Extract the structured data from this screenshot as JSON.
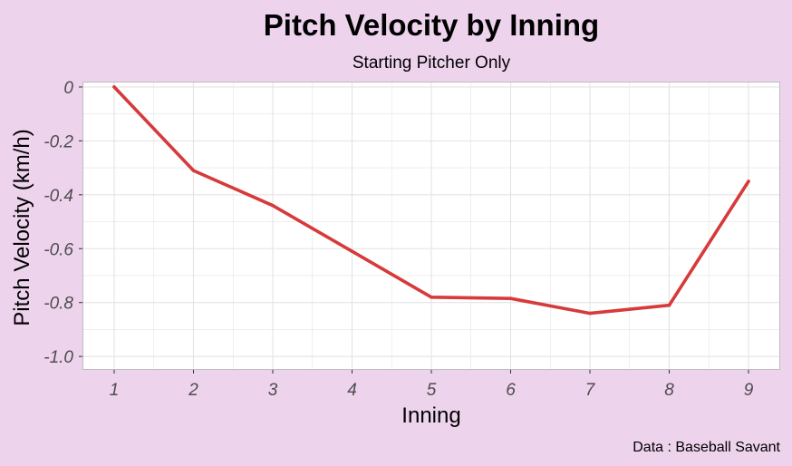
{
  "chart_data": {
    "type": "line",
    "title": "Pitch Velocity by Inning",
    "subtitle": "Starting Pitcher Only",
    "xlabel": "Inning",
    "ylabel": "Pitch Velocity (km/h)",
    "caption": "Data : Baseball Savant",
    "x": [
      1,
      2,
      3,
      4,
      5,
      6,
      7,
      8,
      9
    ],
    "x_tick_labels": [
      "1",
      "2",
      "3",
      "4",
      "5",
      "6",
      "7",
      "8",
      "9"
    ],
    "y_ticks": [
      0,
      -0.2,
      -0.4,
      -0.6,
      -0.8,
      -1.0
    ],
    "y_tick_labels": [
      "0",
      "-0.2",
      "-0.4",
      "-0.6",
      "-0.8",
      "-1.0"
    ],
    "xlim": [
      0.6,
      9.4
    ],
    "ylim": [
      -1.05,
      0.02
    ],
    "grid": true,
    "series": [
      {
        "values": [
          0.0,
          -0.31,
          -0.44,
          -0.61,
          -0.78,
          -0.785,
          -0.84,
          -0.81,
          -0.35
        ],
        "color": "#D63A3A"
      }
    ],
    "colors": {
      "background": "#EDD3EC",
      "panel": "#FFFFFF",
      "grid": "#E3E3E3",
      "panel_border": "#BDBDBD"
    }
  }
}
